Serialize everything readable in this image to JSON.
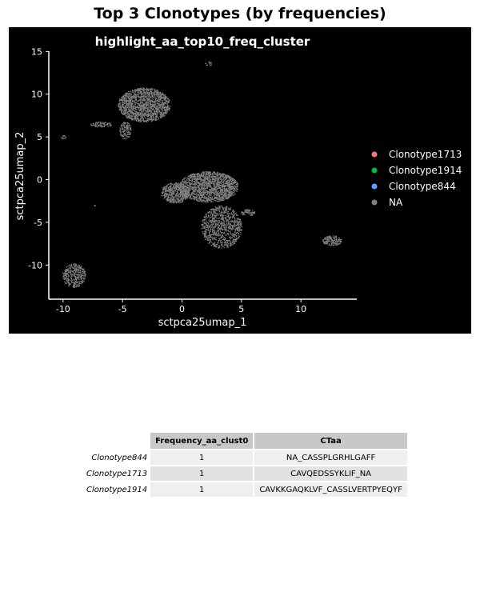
{
  "page_title": "Top 3 Clonotypes (by frequencies)",
  "chart_data": {
    "type": "scatter",
    "title": "highlight_aa_top10_freq_cluster",
    "xlabel": "sctpca25umap_1",
    "ylabel": "sctpca25umap_2",
    "xlim": [
      -11.2,
      14.7
    ],
    "ylim": [
      -14,
      15.5
    ],
    "xticks": [
      -10,
      -5,
      0,
      5,
      10
    ],
    "yticks": [
      -10,
      -5,
      0,
      5,
      10,
      15
    ],
    "background": "#000000",
    "grid": false,
    "legend_position": "right",
    "legend": [
      {
        "name": "Clonotype1713",
        "color": "#F8766D"
      },
      {
        "name": "Clonotype1914",
        "color": "#00BA38"
      },
      {
        "name": "Clonotype844",
        "color": "#619CFF"
      },
      {
        "name": "NA",
        "color": "#808080"
      }
    ],
    "clusters": [
      {
        "cx": -3.2,
        "cy": 8.8,
        "rx": 2.2,
        "ry": 2.0,
        "n": 1500
      },
      {
        "cx": -4.8,
        "cy": 5.8,
        "rx": 0.5,
        "ry": 1.0,
        "n": 120
      },
      {
        "cx": -6.8,
        "cy": 6.5,
        "rx": 0.9,
        "ry": 0.3,
        "n": 80
      },
      {
        "cx": 2.2,
        "cy": -0.8,
        "rx": 2.5,
        "ry": 1.8,
        "n": 1600
      },
      {
        "cx": -0.6,
        "cy": -1.5,
        "rx": 1.2,
        "ry": 1.2,
        "n": 500
      },
      {
        "cx": 3.3,
        "cy": -5.5,
        "rx": 1.7,
        "ry": 2.5,
        "n": 900
      },
      {
        "cx": 5.5,
        "cy": -3.8,
        "rx": 0.6,
        "ry": 0.4,
        "n": 60
      },
      {
        "cx": -9.1,
        "cy": -11.2,
        "rx": 1.0,
        "ry": 1.4,
        "n": 350
      },
      {
        "cx": 12.6,
        "cy": -7.1,
        "rx": 0.8,
        "ry": 0.6,
        "n": 160
      },
      {
        "cx": -10.0,
        "cy": 5.0,
        "rx": 0.2,
        "ry": 0.2,
        "n": 12
      },
      {
        "cx": 2.2,
        "cy": 13.6,
        "rx": 0.3,
        "ry": 0.3,
        "n": 14
      },
      {
        "cx": -7.4,
        "cy": -3.0,
        "rx": 0.1,
        "ry": 0.1,
        "n": 3
      }
    ]
  },
  "table": {
    "headers": [
      "Frequency_aa_clust0",
      "CTaa"
    ],
    "rows": [
      {
        "name": "Clonotype844",
        "freq": "1",
        "ctaa": "NA_CASSPLGRHLGAFF"
      },
      {
        "name": "Clonotype1713",
        "freq": "1",
        "ctaa": "CAVQEDSSYKLIF_NA"
      },
      {
        "name": "Clonotype1914",
        "freq": "1",
        "ctaa": "CAVKKGAQKLVF_CASSLVERTPYEQYF"
      }
    ]
  }
}
